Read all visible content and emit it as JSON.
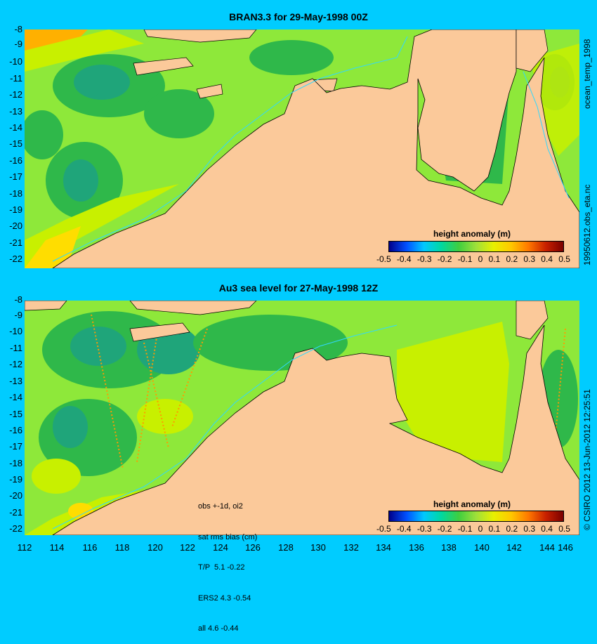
{
  "top_panel": {
    "title": "BRAN3.3 for 29-May-1998 00Z",
    "colorbar_title": "height anomaly (m)"
  },
  "bottom_panel": {
    "title": "Au3 sea level  for 27-May-1998 12Z",
    "colorbar_title": "height anomaly (m)",
    "stats": [
      "obs +-1d, oi2",
      "sat rms bias (cm)",
      "T/P  5.1 -0.22",
      "ERS2 4.3 -0.54",
      "all 4.6 -0.44"
    ]
  },
  "colorbar_ticks": [
    "-0.5",
    "-0.4",
    "-0.3",
    "-0.2",
    "-0.1",
    "0",
    "0.1",
    "0.2",
    "0.3",
    "0.4",
    "0.5"
  ],
  "y_ticks": [
    "-8",
    "-9",
    "-10",
    "-11",
    "-12",
    "-13",
    "-14",
    "-15",
    "-16",
    "-17",
    "-18",
    "-19",
    "-20",
    "-21",
    "-22"
  ],
  "x_ticks": [
    "112",
    "114",
    "116",
    "118",
    "120",
    "122",
    "124",
    "126",
    "128",
    "130",
    "132",
    "134",
    "136",
    "138",
    "140",
    "142",
    "144",
    "146"
  ],
  "side_labels": {
    "top_a": "ocean_temp_1998",
    "top_b": "19950612.obs_eta.nc",
    "bottom": "© CSIRO 2012  13-Jun-2012 12:25:51"
  },
  "colors": {
    "background": "#00ccff",
    "land": "#fbc99a",
    "ocean_base": "#8ee83a",
    "ocean_low": "#2fb84a",
    "ocean_lower": "#1fa57a",
    "ocean_high": "#c8f000",
    "ocean_highest": "#ffb000"
  }
}
